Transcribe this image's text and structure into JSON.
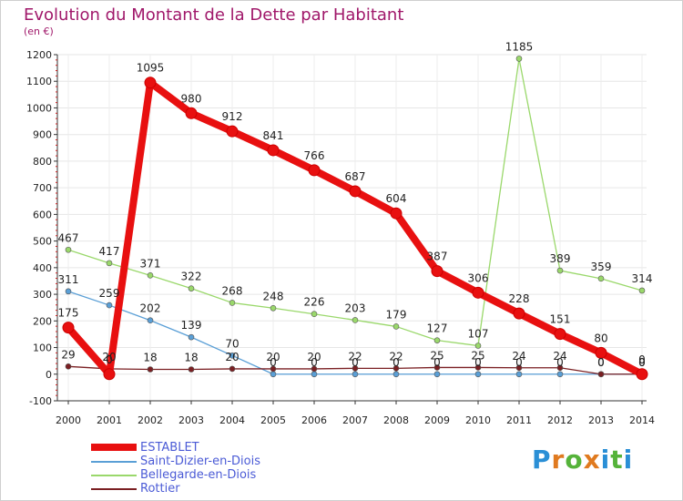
{
  "title": "Evolution du Montant de la Dette par Habitant",
  "unit": "(en €)",
  "logo": {
    "text": "Proxiti",
    "colors": [
      "#2a8fd6",
      "#e07a1f",
      "#55b33a",
      "#e07a1f",
      "#2a8fd6",
      "#55b33a",
      "#2a8fd6"
    ]
  },
  "chart_data": {
    "type": "line",
    "title": "Evolution du Montant de la Dette par Habitant",
    "ylabel": "(en €)",
    "xlabel": "",
    "ylim": [
      -100,
      1200
    ],
    "yticks": [
      -100,
      0,
      100,
      200,
      300,
      400,
      500,
      600,
      700,
      800,
      900,
      1000,
      1100,
      1200
    ],
    "x": [
      "2000",
      "2001",
      "2002",
      "2003",
      "2004",
      "2005",
      "2006",
      "2007",
      "2008",
      "2009",
      "2010",
      "2011",
      "2012",
      "2013",
      "2014"
    ],
    "grid": true,
    "legend_position": "bottom-left",
    "series": [
      {
        "name": "ESTABLET",
        "color": "#e81010",
        "values": [
          175,
          0,
          1095,
          980,
          912,
          841,
          766,
          687,
          604,
          387,
          306,
          228,
          151,
          80,
          0
        ],
        "labels": [
          "175",
          "0",
          "1095",
          "980",
          "912",
          "841",
          "766",
          "687",
          "604",
          "387",
          "306",
          "228",
          "151",
          "80",
          "0"
        ]
      },
      {
        "name": "Saint-Dizier-en-Diois",
        "color": "#5a9fd6",
        "values": [
          311,
          259,
          202,
          139,
          70,
          0,
          0,
          0,
          0,
          0,
          0,
          0,
          0,
          0,
          0
        ],
        "labels": [
          "311",
          "259",
          "202",
          "139",
          "70",
          "0",
          "0",
          "0",
          "0",
          "0",
          "0",
          "0",
          "0",
          "0",
          "0"
        ]
      },
      {
        "name": "Bellegarde-en-Diois",
        "color": "#9ad86b",
        "values": [
          467,
          417,
          371,
          322,
          268,
          248,
          226,
          203,
          179,
          127,
          107,
          1185,
          389,
          359,
          314
        ],
        "labels": [
          "467",
          "417",
          "371",
          "322",
          "268",
          "248",
          "226",
          "203",
          "179",
          "127",
          "107",
          "1185",
          "389",
          "359",
          "314"
        ]
      },
      {
        "name": "Rottier",
        "color": "#7a1f22",
        "values": [
          29,
          20,
          18,
          18,
          20,
          20,
          20,
          22,
          22,
          25,
          25,
          24,
          24,
          0,
          0
        ],
        "labels": [
          "29",
          "20",
          "18",
          "18",
          "20",
          "20",
          "20",
          "22",
          "22",
          "25",
          "25",
          "24",
          "24",
          "0",
          "0"
        ]
      }
    ]
  }
}
